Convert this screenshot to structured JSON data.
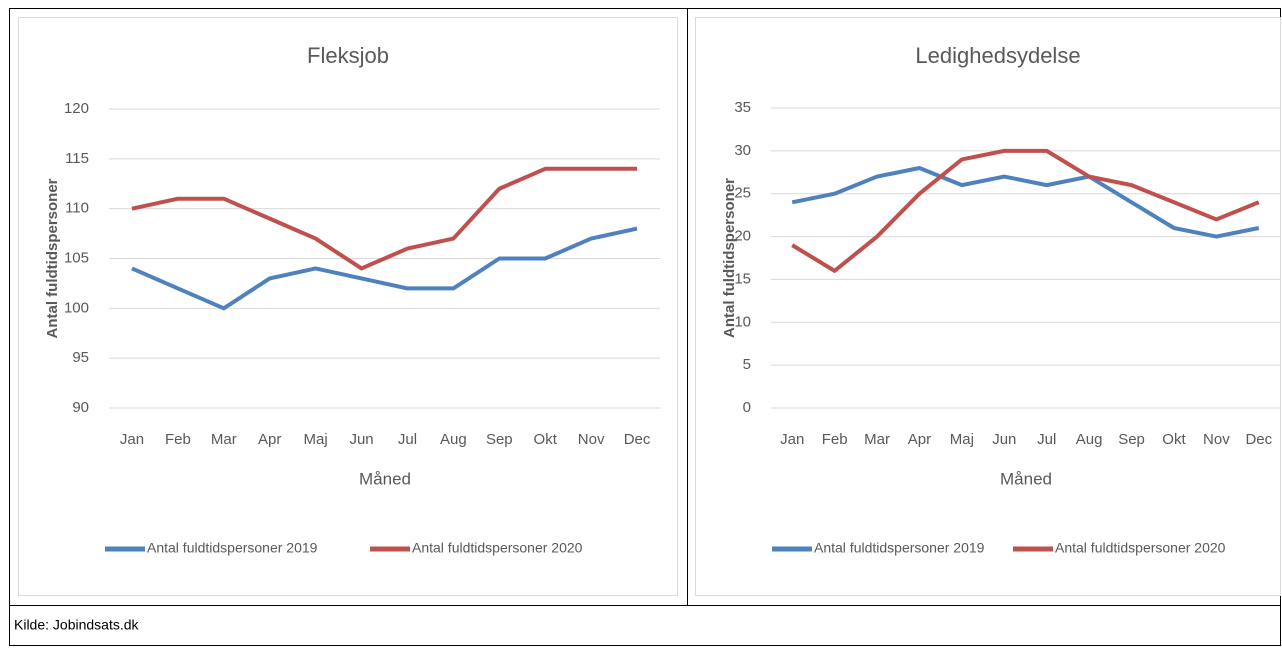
{
  "chart_data": [
    {
      "type": "line",
      "title": "Fleksjob",
      "y_label": "Antal fuldtidspersoner",
      "x_label": "Måned",
      "categories": [
        "Jan",
        "Feb",
        "Mar",
        "Apr",
        "Maj",
        "Jun",
        "Jul",
        "Aug",
        "Sep",
        "Okt",
        "Nov",
        "Dec"
      ],
      "series": [
        {
          "name": "Antal fuldtidspersoner 2019",
          "color": "#4f81bd",
          "values": [
            104,
            102,
            100,
            103,
            104,
            103,
            102,
            102,
            105,
            105,
            107,
            108
          ]
        },
        {
          "name": "Antal fuldtidspersoner 2020",
          "color": "#c0504d",
          "values": [
            110,
            111,
            111,
            109,
            107,
            104,
            106,
            107,
            112,
            114,
            114,
            114
          ]
        }
      ],
      "ylim": [
        90,
        120
      ],
      "yticks": [
        90,
        95,
        100,
        105,
        110,
        115,
        120
      ],
      "grid": true,
      "legend": "bottom"
    },
    {
      "type": "line",
      "title": "Ledighedsydelse",
      "y_label": "Antal fuldtidspersoner",
      "x_label": "Måned",
      "categories": [
        "Jan",
        "Feb",
        "Mar",
        "Apr",
        "Maj",
        "Jun",
        "Jul",
        "Aug",
        "Sep",
        "Okt",
        "Nov",
        "Dec"
      ],
      "series": [
        {
          "name": "Antal fuldtidspersoner 2019",
          "color": "#4f81bd",
          "values": [
            24,
            25,
            27,
            28,
            26,
            27,
            26,
            27,
            24,
            21,
            20,
            21
          ]
        },
        {
          "name": "Antal fuldtidspersoner 2020",
          "color": "#c0504d",
          "values": [
            19,
            16,
            20,
            25,
            29,
            30,
            30,
            27,
            26,
            24,
            22,
            24
          ]
        }
      ],
      "ylim": [
        0,
        35
      ],
      "yticks": [
        0,
        5,
        10,
        15,
        20,
        25,
        30,
        35
      ],
      "grid": true,
      "legend": "bottom"
    }
  ],
  "source": "Kilde: Jobindsats.dk"
}
